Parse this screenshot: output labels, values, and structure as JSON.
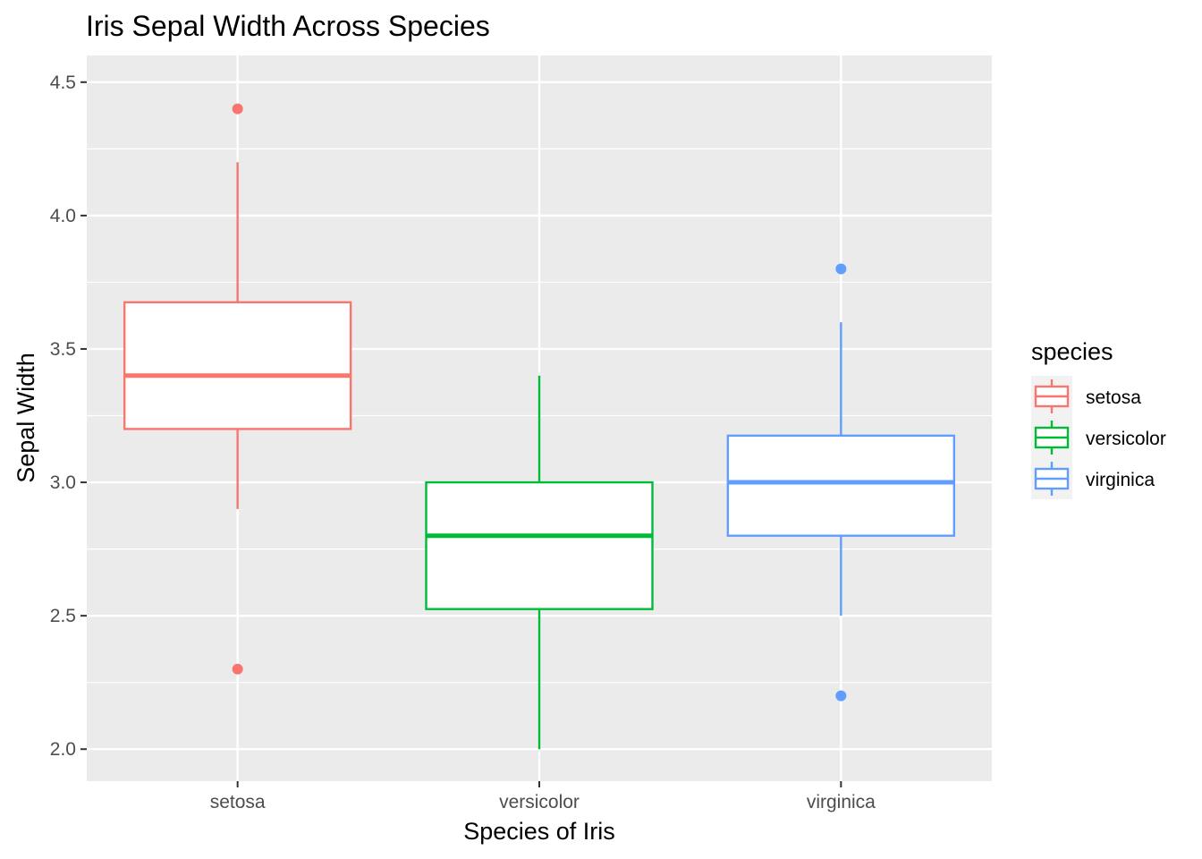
{
  "chart_data": {
    "type": "box",
    "title": "Iris Sepal Width Across Species",
    "xlabel": "Species of Iris",
    "ylabel": "Sepal Width",
    "ylim": [
      1.88,
      4.6
    ],
    "yticks": [
      {
        "value": 2.0,
        "label": "2.0"
      },
      {
        "value": 2.5,
        "label": "2.5"
      },
      {
        "value": 3.0,
        "label": "3.0"
      },
      {
        "value": 3.5,
        "label": "3.5"
      },
      {
        "value": 4.0,
        "label": "4.0"
      },
      {
        "value": 4.5,
        "label": "4.5"
      }
    ],
    "grid": true,
    "legend": {
      "title": "species",
      "position": "right"
    },
    "categories": [
      "setosa",
      "versicolor",
      "virginica"
    ],
    "series": [
      {
        "name": "setosa",
        "color": "#F8766D",
        "whisker_low": 2.9,
        "q1": 3.2,
        "median": 3.4,
        "q3": 3.675,
        "whisker_high": 4.2,
        "outliers": [
          4.4,
          2.3
        ]
      },
      {
        "name": "versicolor",
        "color": "#00BA38",
        "whisker_low": 2.0,
        "q1": 2.525,
        "median": 2.8,
        "q3": 3.0,
        "whisker_high": 3.4,
        "outliers": []
      },
      {
        "name": "virginica",
        "color": "#619CFF",
        "whisker_low": 2.5,
        "q1": 2.8,
        "median": 3.0,
        "q3": 3.175,
        "whisker_high": 3.6,
        "outliers": [
          3.8,
          2.2
        ]
      }
    ]
  }
}
